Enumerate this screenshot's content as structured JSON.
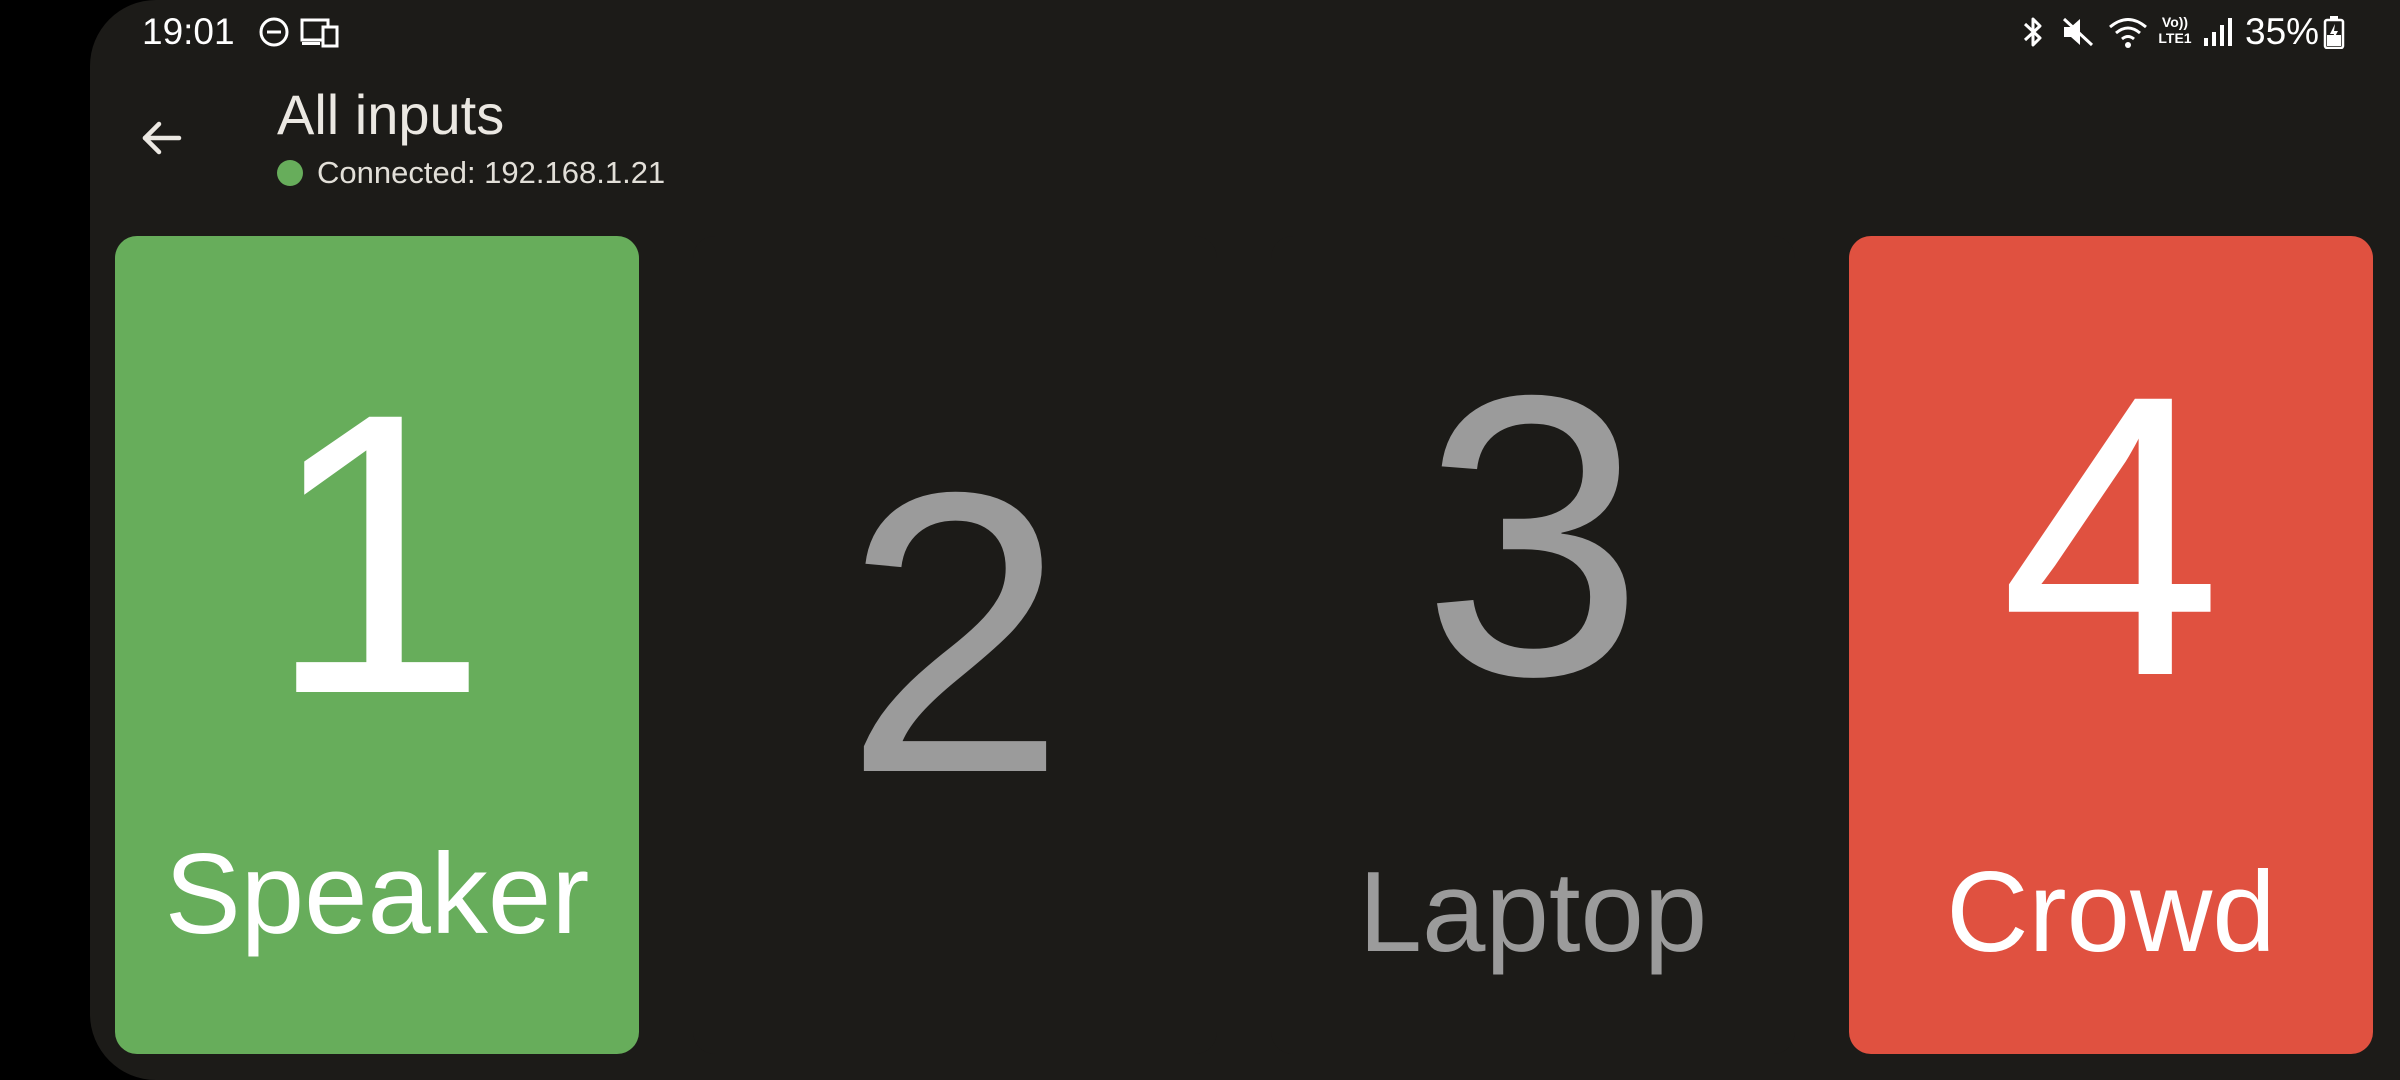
{
  "status_bar": {
    "time": "19:01",
    "network_label": "Vo))\nLTE1",
    "battery": "35%",
    "icons": [
      "do-not-disturb-icon",
      "devices-icon",
      "bluetooth-icon",
      "mute-icon",
      "wifi-icon",
      "signal-icon",
      "battery-charging-icon"
    ]
  },
  "app_bar": {
    "back_icon": "arrow-left-icon",
    "title": "All inputs",
    "connection_status": "Connected: 192.168.1.21",
    "connection_color": "#67ad5b"
  },
  "inputs": [
    {
      "number": "1",
      "label": "Speaker",
      "state": "program",
      "bg": "#67ad5b",
      "fg": "#ffffff"
    },
    {
      "number": "2",
      "label": "",
      "state": "idle",
      "bg": "#1c1b18",
      "fg": "#9b9b9b"
    },
    {
      "number": "3",
      "label": "Laptop",
      "state": "idle",
      "bg": "#1c1b18",
      "fg": "#9b9b9b"
    },
    {
      "number": "4",
      "label": "Crowd",
      "state": "preview",
      "bg": "#e05140",
      "fg": "#ffffff"
    }
  ]
}
